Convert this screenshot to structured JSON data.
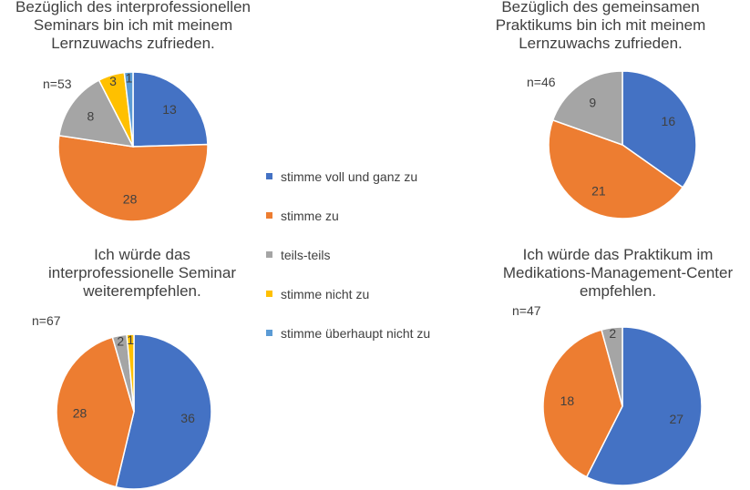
{
  "chart_data": [
    {
      "type": "pie",
      "title": [
        "Bezüglich des interprofessionellen",
        "Seminars bin ich mit meinem",
        "Lernzuwachs zufrieden."
      ],
      "n_label": "n=53",
      "categories": [
        "stimme voll und ganz zu",
        "stimme zu",
        "teils-teils",
        "stimme nicht zu",
        "stimme überhaupt nicht zu"
      ],
      "values": [
        13,
        28,
        8,
        3,
        1
      ]
    },
    {
      "type": "pie",
      "title": [
        "Bezüglich des gemeinsamen",
        "Praktikums bin ich mit meinem",
        "Lernzuwachs zufrieden."
      ],
      "n_label": "n=46",
      "categories": [
        "stimme voll und ganz zu",
        "stimme zu",
        "teils-teils"
      ],
      "values": [
        16,
        21,
        9
      ]
    },
    {
      "type": "pie",
      "title": [
        "Ich würde das",
        "interprofessionelle Seminar",
        "weiterempfehlen."
      ],
      "n_label": "n=67",
      "categories": [
        "stimme voll und ganz zu",
        "stimme zu",
        "teils-teils",
        "stimme nicht zu"
      ],
      "values": [
        36,
        28,
        2,
        1
      ]
    },
    {
      "type": "pie",
      "title": [
        "Ich würde das Praktikum im",
        "Medikations-Management-Center",
        "empfehlen."
      ],
      "n_label": "n=47",
      "categories": [
        "stimme voll und ganz zu",
        "stimme zu",
        "teils-teils"
      ],
      "values": [
        27,
        18,
        2
      ]
    }
  ],
  "legend": [
    {
      "label": "stimme voll und ganz zu",
      "color": "#4472C4"
    },
    {
      "label": "stimme zu",
      "color": "#ED7D31"
    },
    {
      "label": "teils-teils",
      "color": "#A5A5A5"
    },
    {
      "label": "stimme nicht zu",
      "color": "#FFC000"
    },
    {
      "label": "stimme überhaupt nicht zu",
      "color": "#5B9BD5"
    }
  ],
  "colors": {
    "stimme voll und ganz zu": "#4472C4",
    "stimme zu": "#ED7D31",
    "teils-teils": "#A5A5A5",
    "stimme nicht zu": "#FFC000",
    "stimme überhaupt nicht zu": "#5B9BD5"
  }
}
